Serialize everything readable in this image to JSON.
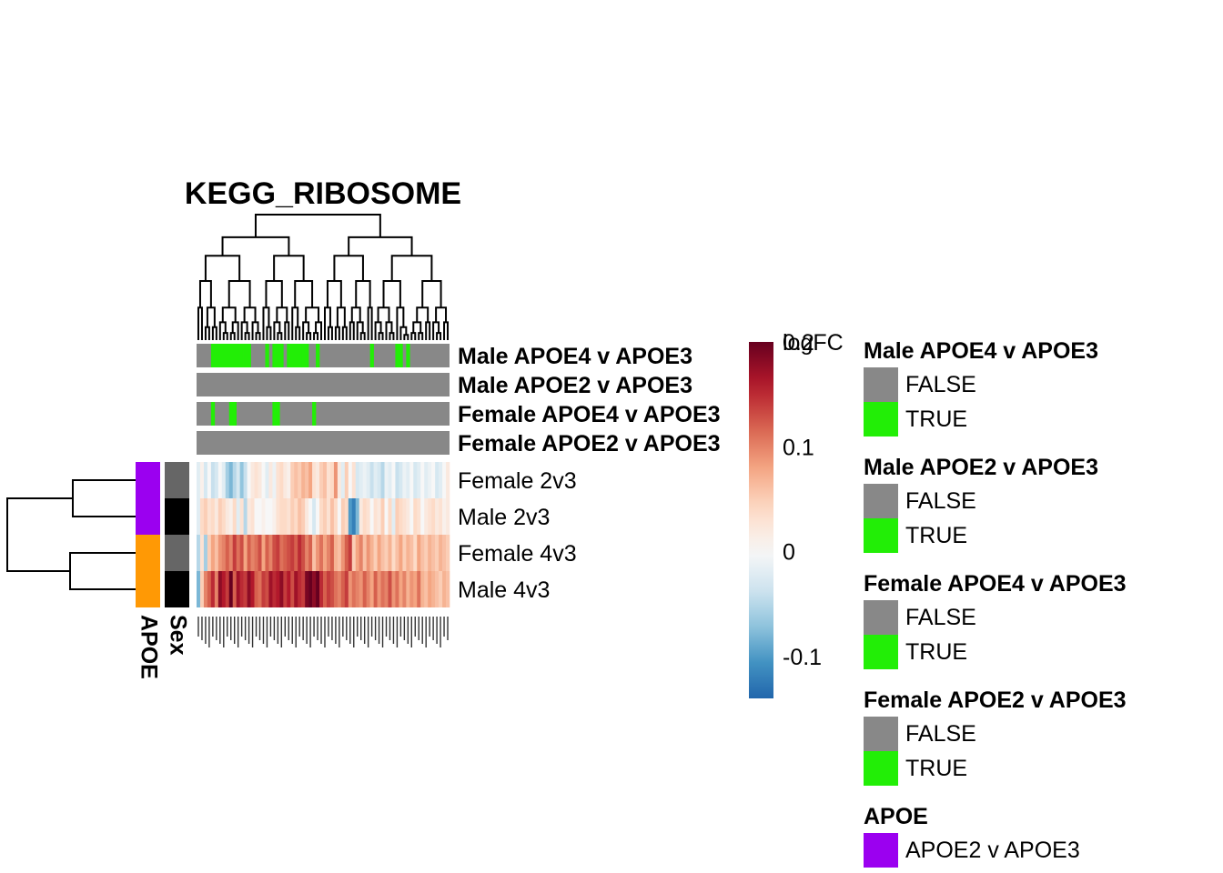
{
  "chart_data": {
    "type": "heatmap",
    "title": "KEGG_RIBOSOME",
    "rows": [
      "Female 2v3",
      "Male 2v3",
      "Female 4v3",
      "Male 4v3"
    ],
    "row_annotations": {
      "APOE": [
        "APOE2 v APOE3",
        "APOE2 v APOE3",
        "APOE4 v APOE3",
        "APOE4 v APOE3"
      ],
      "Sex": [
        "Female",
        "Male",
        "Female",
        "Male"
      ],
      "labels": [
        "APOE",
        "Sex"
      ]
    },
    "column_annotations": [
      {
        "name": "Male APOE4 v APOE3",
        "true_columns": [
          4,
          5,
          6,
          7,
          8,
          9,
          10,
          11,
          12,
          13,
          14,
          19,
          21,
          22,
          23,
          25,
          26,
          27,
          28,
          29,
          30,
          33,
          48,
          55,
          56,
          58
        ]
      },
      {
        "name": "Male APOE2 v APOE3",
        "true_columns": []
      },
      {
        "name": "Female APOE4 v APOE3",
        "true_columns": [
          4,
          9,
          10,
          21,
          22,
          32
        ]
      },
      {
        "name": "Female APOE2 v APOE3",
        "true_columns": []
      }
    ],
    "n_columns": 70,
    "values": [
      [
        -0.02,
        0.01,
        -0.03,
        0.0,
        -0.04,
        -0.03,
        0.0,
        -0.02,
        -0.06,
        -0.08,
        -0.05,
        -0.03,
        -0.07,
        -0.04,
        0.0,
        0.02,
        0.03,
        0.02,
        0.0,
        -0.02,
        0.02,
        -0.01,
        0.03,
        0.04,
        0.02,
        0.01,
        0.05,
        0.06,
        0.05,
        0.07,
        0.06,
        0.08,
        0.03,
        0.02,
        0.05,
        0.06,
        0.03,
        0.04,
        0.09,
        0.02,
        -0.02,
        0.05,
        0.0,
        0.03,
        -0.03,
        -0.02,
        -0.01,
        -0.02,
        -0.04,
        -0.02,
        -0.03,
        -0.05,
        -0.01,
        -0.02,
        0.0,
        -0.04,
        -0.03,
        -0.01,
        -0.02,
        0.0,
        -0.03,
        -0.02,
        0.0,
        -0.02,
        -0.01,
        0.0,
        -0.03,
        -0.02,
        0.0,
        0.02
      ],
      [
        -0.02,
        0.04,
        0.05,
        0.03,
        0.04,
        0.02,
        0.05,
        0.04,
        0.02,
        0.01,
        0.04,
        -0.02,
        0.03,
        -0.05,
        0.02,
        0.03,
        0.0,
        0.0,
        0.01,
        0.0,
        0.0,
        0.01,
        0.03,
        0.04,
        0.04,
        0.03,
        0.05,
        0.04,
        0.06,
        0.05,
        0.02,
        0.0,
        -0.03,
        0.0,
        0.04,
        0.05,
        0.03,
        0.06,
        0.04,
        0.0,
        0.05,
        0.04,
        -0.1,
        -0.12,
        -0.08,
        0.02,
        0.04,
        0.03,
        0.0,
        0.03,
        0.02,
        0.05,
        0.0,
        0.04,
        -0.02,
        0.05,
        0.04,
        0.03,
        0.02,
        0.0,
        0.04,
        0.03,
        0.0,
        0.02,
        0.03,
        0.04,
        0.02,
        0.03,
        0.01,
        0.02
      ],
      [
        -0.05,
        0.03,
        -0.06,
        0.05,
        0.08,
        0.06,
        0.09,
        0.1,
        0.12,
        0.1,
        0.14,
        0.11,
        0.13,
        0.08,
        0.12,
        0.1,
        0.11,
        0.13,
        0.08,
        0.12,
        0.1,
        0.13,
        0.14,
        0.11,
        0.12,
        0.13,
        0.14,
        0.12,
        0.15,
        0.13,
        0.1,
        0.12,
        0.06,
        0.09,
        0.11,
        0.08,
        0.1,
        0.12,
        0.07,
        0.06,
        0.09,
        0.12,
        0.14,
        0.05,
        0.08,
        0.1,
        0.06,
        0.09,
        0.07,
        0.05,
        0.08,
        0.06,
        0.05,
        0.07,
        0.04,
        0.06,
        0.08,
        0.05,
        0.07,
        0.06,
        0.04,
        0.08,
        0.06,
        0.05,
        0.07,
        0.06,
        0.05,
        0.07,
        0.06,
        0.05
      ],
      [
        -0.08,
        0.05,
        0.1,
        0.12,
        0.15,
        0.1,
        0.18,
        0.16,
        0.14,
        0.2,
        0.12,
        0.17,
        0.15,
        0.14,
        0.18,
        0.16,
        0.12,
        0.11,
        0.14,
        0.13,
        0.17,
        0.15,
        0.16,
        0.18,
        0.14,
        0.16,
        0.13,
        0.17,
        0.15,
        0.14,
        0.19,
        0.22,
        0.18,
        0.21,
        0.15,
        0.12,
        0.14,
        0.13,
        0.11,
        0.1,
        0.12,
        0.14,
        0.09,
        0.11,
        0.1,
        0.09,
        0.12,
        0.1,
        0.08,
        0.12,
        0.09,
        0.11,
        0.1,
        0.13,
        0.09,
        0.11,
        0.08,
        0.1,
        0.07,
        0.09,
        0.08,
        0.11,
        0.07,
        0.06,
        0.08,
        0.07,
        0.06,
        0.05,
        0.07,
        0.06
      ]
    ],
    "color_scale": {
      "legend_title": "logFC",
      "ticks": [
        "0.2",
        "0.1",
        "0",
        "-0.1"
      ],
      "tick_values": [
        0.2,
        0.1,
        0,
        -0.1
      ],
      "range": [
        -0.14,
        0.2
      ],
      "colors": [
        "#2166ac",
        "#4393c3",
        "#92c5de",
        "#d1e5f0",
        "#f7f7f7",
        "#fddbc7",
        "#f4a582",
        "#d6604d",
        "#b2182b",
        "#67001f"
      ]
    },
    "legends": [
      {
        "title": "Male APOE4 v APOE3",
        "items": [
          {
            "label": "FALSE",
            "color": "#888888"
          },
          {
            "label": "TRUE",
            "color": "#22ee06"
          }
        ]
      },
      {
        "title": "Male APOE2 v APOE3",
        "items": [
          {
            "label": "FALSE",
            "color": "#888888"
          },
          {
            "label": "TRUE",
            "color": "#22ee06"
          }
        ]
      },
      {
        "title": "Female APOE4 v APOE3",
        "items": [
          {
            "label": "FALSE",
            "color": "#888888"
          },
          {
            "label": "TRUE",
            "color": "#22ee06"
          }
        ]
      },
      {
        "title": "Female APOE2 v APOE3",
        "items": [
          {
            "label": "FALSE",
            "color": "#888888"
          },
          {
            "label": "TRUE",
            "color": "#22ee06"
          }
        ]
      },
      {
        "title": "APOE",
        "items": [
          {
            "label": "APOE2 v APOE3",
            "color": "#9b00f0"
          }
        ]
      }
    ],
    "colors": {
      "annotation_false": "#888888",
      "annotation_true": "#22ee06",
      "apoe2": "#9b00f0",
      "apoe4": "#ff9905",
      "sex_female": "#666666",
      "sex_male": "#000000"
    },
    "column_labels_note": "Column labels are rendered too small to be legible"
  }
}
